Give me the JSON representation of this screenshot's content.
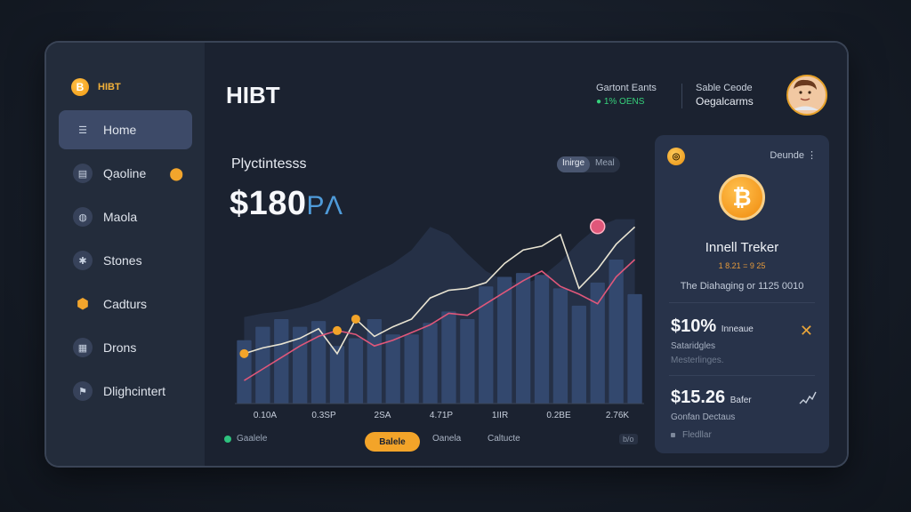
{
  "brand": {
    "label": "HIBT",
    "icon": "bitcoin-icon"
  },
  "sidebar": {
    "items": [
      {
        "label": "Home",
        "icon": "menu-lines-icon",
        "active": true
      },
      {
        "label": "Qaoline",
        "icon": "document-icon"
      },
      {
        "label": "Maola",
        "icon": "globe-icon"
      },
      {
        "label": "Stones",
        "icon": "gear-icon"
      },
      {
        "label": "Cadturs",
        "icon": "shield-icon"
      },
      {
        "label": "Drons",
        "icon": "grid-icon"
      },
      {
        "label": "Dlighcintert",
        "icon": "flag-icon"
      }
    ],
    "pin_icon": "location-pin-icon"
  },
  "header": {
    "title": "HIBT",
    "group1": {
      "line1": "Gartont Eants",
      "line2": "● 1% OENS"
    },
    "group2": {
      "line1": "Sable Ceode",
      "line2": "Oegalcarms"
    },
    "avatar": "user-avatar"
  },
  "chart": {
    "title": "Plyctintesss",
    "price": "$180",
    "price_unit": "PΛ",
    "toggle": [
      "Inirge",
      "Meal"
    ],
    "x_labels": [
      "0.10A",
      "0.3SP",
      "2SA",
      "4.71P",
      "1IIR",
      "0.2BE",
      "2.76K"
    ]
  },
  "chart_data": {
    "type": "bar",
    "series": [
      {
        "type": "bar",
        "values": [
          33,
          40,
          44,
          40,
          43,
          30,
          34,
          44,
          36,
          36,
          42,
          48,
          44,
          61,
          66,
          68,
          67,
          60,
          51,
          63,
          75,
          57
        ]
      },
      {
        "type": "line",
        "values": [
          26,
          29,
          31,
          34,
          39,
          26,
          44,
          35,
          40,
          44,
          55,
          59,
          60,
          63,
          73,
          80,
          82,
          88,
          60,
          70,
          83,
          92
        ]
      },
      {
        "type": "line",
        "values": [
          12,
          18,
          24,
          30,
          35,
          38,
          36,
          30,
          33,
          37,
          41,
          47,
          46,
          52,
          58,
          64,
          69,
          61,
          57,
          52,
          66,
          75
        ]
      },
      {
        "type": "area",
        "values": [
          45,
          47,
          48,
          50,
          53,
          58,
          63,
          68,
          73,
          80,
          92,
          88,
          78,
          69,
          64,
          62,
          66,
          74,
          84,
          92,
          96,
          96
        ]
      }
    ],
    "ylim": [
      0,
      100
    ]
  },
  "footer": {
    "status": "Gaalele",
    "button": "Balele",
    "link1": "Oanela",
    "link2": "Caltucte",
    "badge": "b/o"
  },
  "panel": {
    "menu_label": "Deunde ⋮",
    "coin_symbol": "₿",
    "name": "Innell Treker",
    "sub": "1 8.21 = 9 25",
    "desc": "The Diahaging or 1125 0010",
    "stat1": {
      "value": "$10%",
      "tag": "Inneaue",
      "line1": "Sataridgles",
      "line2": "Mesterlinges."
    },
    "stat2": {
      "value": "$15.26",
      "tag": "Bafer",
      "line1": "Gonfan Dectaus",
      "line2": "Fledllar"
    },
    "accent": "#f3a429"
  }
}
